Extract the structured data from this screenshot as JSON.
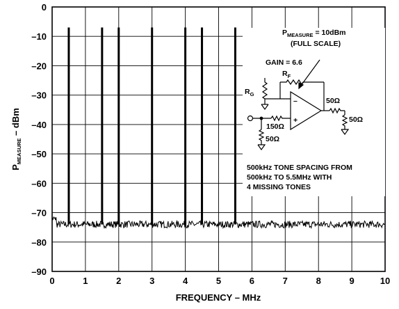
{
  "chart_data": {
    "type": "line",
    "xlabel": "FREQUENCY – MHz",
    "ylabel": {
      "main": "P",
      "sub": "MEASURE",
      "rest": " – dBm"
    },
    "xlim": [
      0,
      10
    ],
    "ylim": [
      -90,
      0
    ],
    "x_ticks": [
      "0",
      "1",
      "2",
      "3",
      "4",
      "5",
      "6",
      "7",
      "8",
      "9",
      "10"
    ],
    "y_ticks": [
      "0",
      "–10",
      "–20",
      "–30",
      "–40",
      "–50",
      "–60",
      "–70",
      "–80",
      "–90"
    ],
    "grid": true,
    "noise_floor_dbm": -74,
    "tones": [
      {
        "x": 0.5,
        "y": -7
      },
      {
        "x": 1.5,
        "y": -7
      },
      {
        "x": 2.0,
        "y": -7
      },
      {
        "x": 3.0,
        "y": -7
      },
      {
        "x": 4.0,
        "y": -7
      },
      {
        "x": 4.5,
        "y": -7
      },
      {
        "x": 5.5,
        "y": -7
      }
    ]
  },
  "annotations": {
    "pmeasure": {
      "main": "P",
      "sub": "MEASURE",
      "rest": " = 10dBm"
    },
    "full_scale": "(FULL SCALE)",
    "gain": "GAIN = 6.6",
    "rf": {
      "main": "R",
      "sub": "F"
    },
    "rg": {
      "main": "R",
      "sub": "G"
    },
    "r150": "150Ω",
    "r50_in": "50Ω",
    "r50_out": "50Ω",
    "r50_load": "50Ω",
    "opamp_minus": "–",
    "opamp_plus": "+",
    "tone_note": [
      "500kHz TONE SPACING FROM",
      "500kHz TO 5.5MHz WITH",
      "4 MISSING TONES"
    ]
  }
}
